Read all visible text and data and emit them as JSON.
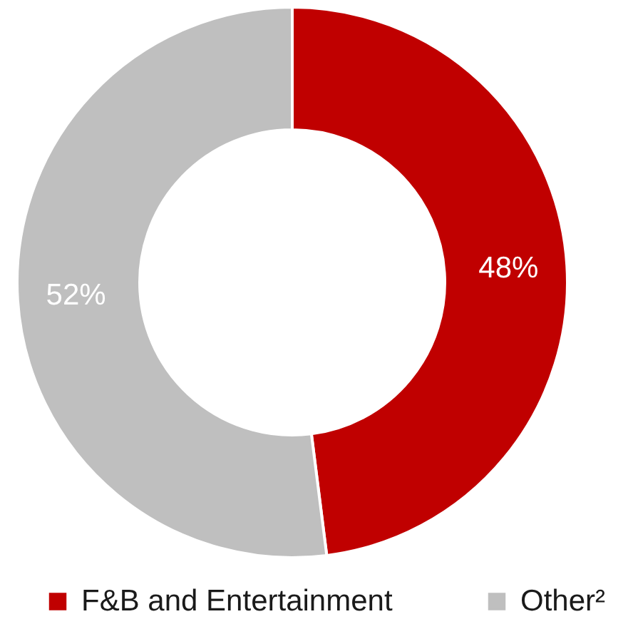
{
  "chart_data": {
    "type": "donut",
    "categories": [
      "F&B and Entertainment",
      "Other²"
    ],
    "values": [
      48,
      52
    ],
    "value_labels": [
      "48%",
      "52%"
    ],
    "colors": [
      "#c00000",
      "#bfbfbf"
    ],
    "legend": "bottom"
  }
}
